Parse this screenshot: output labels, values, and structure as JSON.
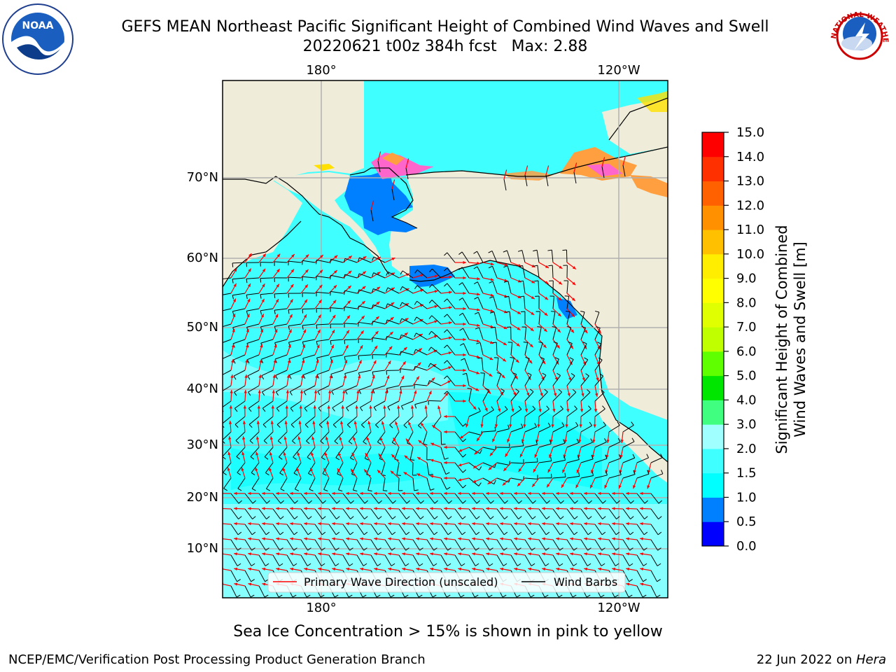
{
  "header": {
    "title": "GEFS MEAN Northeast Pacific Significant Height of Combined Wind Waves and Swell",
    "subtitle": "20220621 t00z 384h fcst   Max: 2.88"
  },
  "logos": {
    "left": {
      "icon": "noaa-logo-icon",
      "text": "NOAA"
    },
    "right": {
      "icon": "nws-logo-icon",
      "text": "NATIONAL WEATHER SERVICE"
    }
  },
  "chart_data": {
    "type": "heatmap",
    "map_region": "Northeast Pacific",
    "x_ticks_top": [
      "180°",
      "120°W"
    ],
    "x_ticks_bottom": [
      "180°",
      "120°W"
    ],
    "y_ticks": [
      "70°N",
      "60°N",
      "50°N",
      "40°N",
      "30°N",
      "20°N",
      "10°N"
    ],
    "grid": true,
    "legend": {
      "placement": "bottom-center",
      "entries": [
        {
          "label": "Primary Wave Direction (unscaled)",
          "color": "#ff0000"
        },
        {
          "label": "Wind Barbs",
          "color": "#000000"
        }
      ]
    },
    "colorbar": {
      "label": "Significant Height of Combined\nWind Waves and Swell [m]",
      "label_line1": "Significant Height of Combined",
      "label_line2": "Wind Waves and Swell [m]",
      "ticks": [
        "0.0",
        "0.5",
        "1.0",
        "1.5",
        "2.0",
        "3.0",
        "4.0",
        "5.0",
        "6.0",
        "7.0",
        "8.0",
        "9.0",
        "10.0",
        "11.0",
        "12.0",
        "13.0",
        "14.0",
        "15.0"
      ],
      "bins": [
        {
          "min": 0.0,
          "max": 0.5,
          "color": "#0000ff"
        },
        {
          "min": 0.5,
          "max": 1.0,
          "color": "#0080ff"
        },
        {
          "min": 1.0,
          "max": 1.5,
          "color": "#00ffff"
        },
        {
          "min": 1.5,
          "max": 2.0,
          "color": "#40ffff"
        },
        {
          "min": 2.0,
          "max": 3.0,
          "color": "#a0ffff"
        },
        {
          "min": 3.0,
          "max": 4.0,
          "color": "#40ff80"
        },
        {
          "min": 4.0,
          "max": 5.0,
          "color": "#00e600"
        },
        {
          "min": 5.0,
          "max": 6.0,
          "color": "#60ff00"
        },
        {
          "min": 6.0,
          "max": 7.0,
          "color": "#c0ff00"
        },
        {
          "min": 7.0,
          "max": 8.0,
          "color": "#e0ff00"
        },
        {
          "min": 8.0,
          "max": 9.0,
          "color": "#ffff00"
        },
        {
          "min": 9.0,
          "max": 10.0,
          "color": "#ffee00"
        },
        {
          "min": 10.0,
          "max": 11.0,
          "color": "#ffc000"
        },
        {
          "min": 11.0,
          "max": 12.0,
          "color": "#ff9000"
        },
        {
          "min": 12.0,
          "max": 13.0,
          "color": "#ff6000"
        },
        {
          "min": 13.0,
          "max": 14.0,
          "color": "#ff3000"
        },
        {
          "min": 14.0,
          "max": 15.0,
          "color": "#ff0000"
        }
      ]
    },
    "max_value": 2.88
  },
  "notes": {
    "ice": "Sea Ice Concentration > 15% is shown in pink to yellow"
  },
  "footer": {
    "left": "NCEP/EMC/Verification Post Processing Product Generation Branch",
    "right_prefix": "22 Jun 2022 on ",
    "right_host": "Hera"
  },
  "colors": {
    "land": "#efedda",
    "ocean_main": "#40ffff",
    "ocean_light": "#a0ffff",
    "ocean_bright": "#00ffff",
    "shallow": "#0080ff",
    "ice_pink": "#ff66cc",
    "ice_orange": "#ff9f40",
    "ice_yellow": "#ffe000",
    "gridline": "#b0b0b0",
    "wave_arrow": "#ff0000",
    "barb": "#000000"
  }
}
